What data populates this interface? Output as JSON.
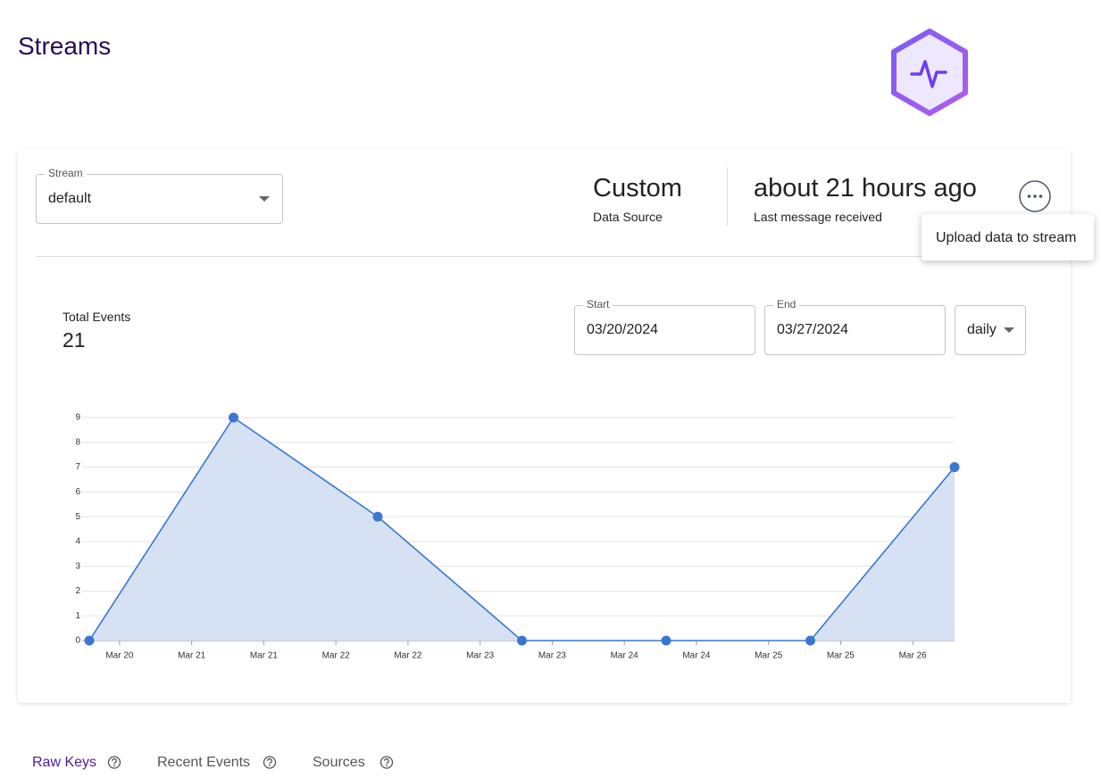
{
  "header": {
    "title": "Streams"
  },
  "stream_select": {
    "label": "Stream",
    "value": "default"
  },
  "stats": [
    {
      "value": "Custom",
      "label": "Data Source"
    },
    {
      "value": "about 21 hours ago",
      "label": "Last message received"
    }
  ],
  "menu": {
    "items": [
      "Upload data to stream"
    ]
  },
  "summary": {
    "label": "Total Events",
    "value": 21
  },
  "filters": {
    "start": {
      "label": "Start",
      "value": "03/20/2024"
    },
    "end": {
      "label": "End",
      "value": "03/27/2024"
    },
    "interval": "daily"
  },
  "chart_data": {
    "type": "area",
    "color": "#3a77cf",
    "fill": "#d6e1f3",
    "grid": true,
    "x": [
      0,
      1,
      2,
      3,
      4,
      5,
      6
    ],
    "values": [
      0,
      9,
      5,
      0,
      0,
      0,
      7
    ],
    "xlim": [
      0,
      6
    ],
    "xticks": [
      {
        "value": 0.21,
        "label": "Mar 20"
      },
      {
        "value": 0.71,
        "label": "Mar 21"
      },
      {
        "value": 1.21,
        "label": "Mar 21"
      },
      {
        "value": 1.71,
        "label": "Mar 22"
      },
      {
        "value": 2.21,
        "label": "Mar 22"
      },
      {
        "value": 2.71,
        "label": "Mar 23"
      },
      {
        "value": 3.21,
        "label": "Mar 23"
      },
      {
        "value": 3.71,
        "label": "Mar 24"
      },
      {
        "value": 4.21,
        "label": "Mar 24"
      },
      {
        "value": 4.71,
        "label": "Mar 25"
      },
      {
        "value": 5.21,
        "label": "Mar 25"
      },
      {
        "value": 5.71,
        "label": "Mar 26"
      }
    ],
    "ylim": [
      0,
      9
    ],
    "yticks": [
      0,
      1,
      2,
      3,
      4,
      5,
      6,
      7,
      8,
      9
    ]
  },
  "tabs": [
    "Raw Keys",
    "Recent Events",
    "Sources"
  ]
}
